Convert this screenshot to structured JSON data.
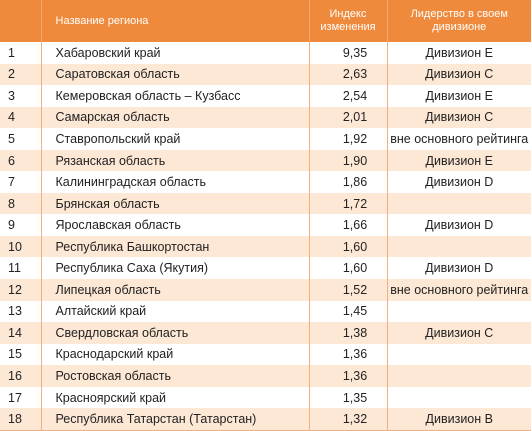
{
  "header": {
    "num": "",
    "region": "Название региона",
    "index": "Индекс изменения",
    "leadership": "Лидерство в своем дивизионе"
  },
  "rows": [
    {
      "num": "1",
      "region": "Хабаровский край",
      "index": "9,35",
      "leadership": "Дивизион Е"
    },
    {
      "num": "2",
      "region": "Саратовская область",
      "index": "2,63",
      "leadership": "Дивизион С"
    },
    {
      "num": "3",
      "region": "Кемеровская область – Кузбасс",
      "index": "2,54",
      "leadership": "Дивизион Е"
    },
    {
      "num": "4",
      "region": "Самарская область",
      "index": "2,01",
      "leadership": "Дивизион С"
    },
    {
      "num": "5",
      "region": "Ставропольский край",
      "index": "1,92",
      "leadership": "вне основного рейтинга"
    },
    {
      "num": "6",
      "region": "Рязанская область",
      "index": "1,90",
      "leadership": "Дивизион Е"
    },
    {
      "num": "7",
      "region": "Калининградская область",
      "index": "1,86",
      "leadership": "Дивизион D"
    },
    {
      "num": "8",
      "region": "Брянская область",
      "index": "1,72",
      "leadership": ""
    },
    {
      "num": "9",
      "region": "Ярославская область",
      "index": "1,66",
      "leadership": "Дивизион D"
    },
    {
      "num": "10",
      "region": "Республика Башкортостан",
      "index": "1,60",
      "leadership": ""
    },
    {
      "num": "11",
      "region": "Республика Саха (Якутия)",
      "index": "1,60",
      "leadership": "Дивизион D"
    },
    {
      "num": "12",
      "region": "Липецкая область",
      "index": "1,52",
      "leadership": "вне основного рейтинга"
    },
    {
      "num": "13",
      "region": "Алтайский край",
      "index": "1,45",
      "leadership": ""
    },
    {
      "num": "14",
      "region": "Свердловская область",
      "index": "1,38",
      "leadership": "Дивизион С"
    },
    {
      "num": "15",
      "region": "Краснодарский край",
      "index": "1,36",
      "leadership": ""
    },
    {
      "num": "16",
      "region": "Ростовская область",
      "index": "1,36",
      "leadership": ""
    },
    {
      "num": "17",
      "region": "Красноярский край",
      "index": "1,35",
      "leadership": ""
    },
    {
      "num": "18",
      "region": "Республика Татарстан (Татарстан)",
      "index": "1,32",
      "leadership": "Дивизион В"
    }
  ],
  "colors": {
    "header_bg": "#ef8a3c",
    "stripe_bg": "#fde7d5",
    "grid_line": "#f2b07e"
  }
}
